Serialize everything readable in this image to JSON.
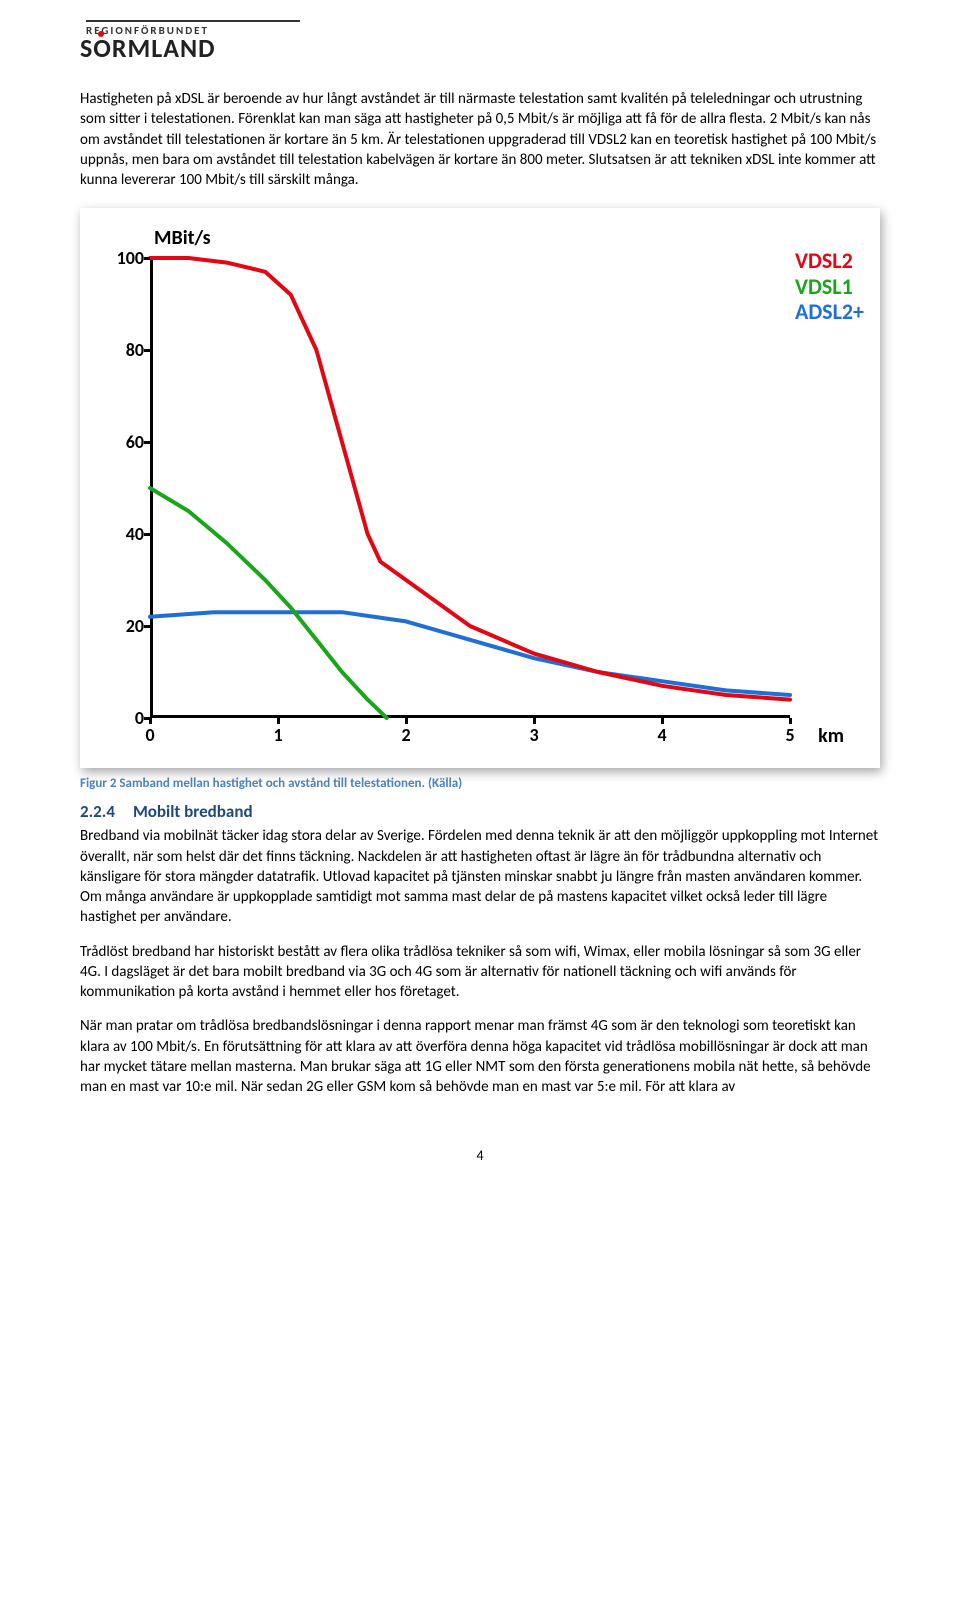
{
  "logo": {
    "top": "REGIONFÖRBUNDET",
    "main_before": "S",
    "main_o": "O",
    "main_after": "RMLAND"
  },
  "para1": "Hastigheten på xDSL är beroende av hur långt avståndet är till närmaste telestation samt kvalitén på teleledningar och utrustning som sitter i telestationen. Förenklat kan man säga att hastigheter på 0,5 Mbit/s är möjliga att få för de allra flesta. 2 Mbit/s kan nås om avståndet till telestationen är kortare än 5 km. Är telestationen uppgraderad till VDSL2 kan en teoretisk hastighet på 100 Mbit/s uppnås, men bara om avståndet till telestation kabelvägen är kortare än 800 meter. Slutsatsen är att tekniken xDSL inte kommer att kunna levererar 100 Mbit/s till särskilt många.",
  "chart": {
    "type": "line",
    "y_title": "MBit/s",
    "x_unit": "km",
    "xlim": [
      0,
      5
    ],
    "ylim": [
      0,
      100
    ],
    "xticks": [
      0,
      1,
      2,
      3,
      4,
      5
    ],
    "yticks": [
      0,
      20,
      40,
      60,
      80,
      100
    ],
    "axis_color": "#000000",
    "line_width": 4,
    "legend": [
      {
        "label": "VDSL2",
        "color": "#e30613"
      },
      {
        "label": "VDSL1",
        "color": "#1aa61a"
      },
      {
        "label": "ADSL2+",
        "color": "#1f6fd4"
      }
    ],
    "series": {
      "vdsl2": {
        "color": "#e30613",
        "x": [
          0,
          0.3,
          0.6,
          0.9,
          1.1,
          1.3,
          1.5,
          1.7,
          1.8,
          2.0,
          2.5,
          3.0,
          3.5,
          4.0,
          4.5,
          5.0
        ],
        "y": [
          100,
          100,
          99,
          97,
          92,
          80,
          60,
          40,
          34,
          30,
          20,
          14,
          10,
          7,
          5,
          4
        ]
      },
      "vdsl1": {
        "color": "#1aa61a",
        "x": [
          0,
          0.3,
          0.6,
          0.9,
          1.1,
          1.3,
          1.5,
          1.7,
          1.85
        ],
        "y": [
          50,
          45,
          38,
          30,
          24,
          17,
          10,
          4,
          0
        ]
      },
      "adsl2": {
        "color": "#1f6fd4",
        "x": [
          0,
          0.5,
          1.0,
          1.5,
          2.0,
          2.5,
          3.0,
          3.5,
          4.0,
          4.5,
          5.0
        ],
        "y": [
          22,
          23,
          23,
          23,
          21,
          17,
          13,
          10,
          8,
          6,
          5
        ]
      }
    }
  },
  "caption": {
    "text": "Figur 2 Samband mellan hastighet och avstånd till telestationen.",
    "kalla": "(Källa)"
  },
  "heading": {
    "num": "2.2.4",
    "title": "Mobilt bredband"
  },
  "para2": "Bredband via mobilnät täcker idag stora delar av Sverige. Fördelen med denna teknik är att den möjliggör uppkoppling mot Internet överallt, när som helst där det finns täckning. Nackdelen är att hastigheten oftast är lägre än för trådbundna alternativ och känsligare för stora mängder datatrafik. Utlovad kapacitet på tjänsten minskar snabbt ju längre från masten användaren kommer. Om många användare är uppkopplade samtidigt mot samma mast delar de på mastens kapacitet vilket också leder till lägre hastighet per användare.",
  "para3": "Trådlöst bredband har historiskt bestått av flera olika trådlösa tekniker så som wifi, Wimax, eller mobila lösningar så som 3G eller 4G. I dagsläget är det bara mobilt bredband via 3G och 4G som är alternativ för nationell täckning och wifi används för kommunikation på korta avstånd i hemmet eller hos företaget.",
  "para4": "När man pratar om trådlösa bredbandslösningar i denna rapport menar man främst 4G som är den teknologi som teoretiskt kan klara av 100 Mbit/s. En förutsättning för att klara av att överföra denna höga kapacitet vid trådlösa mobillösningar är dock att man har mycket tätare mellan masterna. Man brukar säga att 1G eller NMT som den första generationens mobila nät hette, så behövde man en mast var 10:e mil. När sedan 2G eller GSM kom så behövde man en mast var 5:e mil. För att klara av",
  "page_number": "4"
}
